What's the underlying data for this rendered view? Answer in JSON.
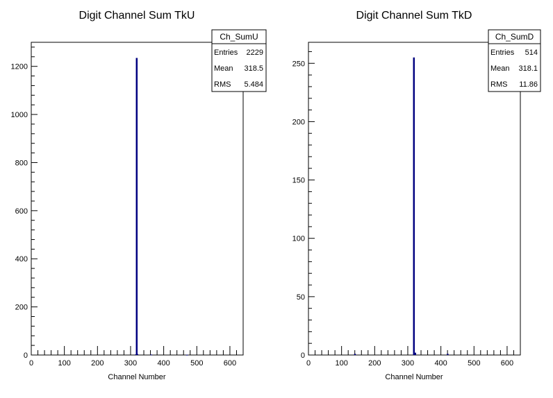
{
  "chart_data": [
    {
      "type": "bar",
      "title": "Digit Channel Sum TkU",
      "xlabel": "Channel Number",
      "ylabel": "",
      "xlim": [
        0,
        640
      ],
      "ylim": [
        0,
        1300
      ],
      "x_ticks": [
        "0",
        "100",
        "200",
        "300",
        "400",
        "500",
        "600"
      ],
      "y_ticks": [
        "0",
        "200",
        "400",
        "600",
        "800",
        "1000",
        "1200"
      ],
      "series": [
        {
          "x": [
            316,
            318,
            320,
            362,
            470
          ],
          "values": [
            3,
            1235,
            4,
            2,
            1
          ]
        }
      ],
      "stats": {
        "name": "Ch_SumU",
        "rows": [
          {
            "label": "Entries",
            "value": "2229"
          },
          {
            "label": "Mean",
            "value": "318.5"
          },
          {
            "label": "RMS",
            "value": "5.484"
          }
        ]
      }
    },
    {
      "type": "bar",
      "title": "Digit Channel Sum TkD",
      "xlabel": "Channel Number",
      "ylabel": "",
      "xlim": [
        0,
        640
      ],
      "ylim": [
        0,
        268
      ],
      "x_ticks": [
        "0",
        "100",
        "200",
        "300",
        "400",
        "500",
        "600"
      ],
      "y_ticks": [
        "0",
        "50",
        "100",
        "150",
        "200",
        "250"
      ],
      "series": [
        {
          "x": [
            140,
            318,
            322,
            420
          ],
          "values": [
            1,
            255,
            2,
            1
          ]
        }
      ],
      "stats": {
        "name": "Ch_SumD",
        "rows": [
          {
            "label": "Entries",
            "value": "514"
          },
          {
            "label": "Mean",
            "value": "318.1"
          },
          {
            "label": "RMS",
            "value": "11.86"
          }
        ]
      }
    }
  ]
}
